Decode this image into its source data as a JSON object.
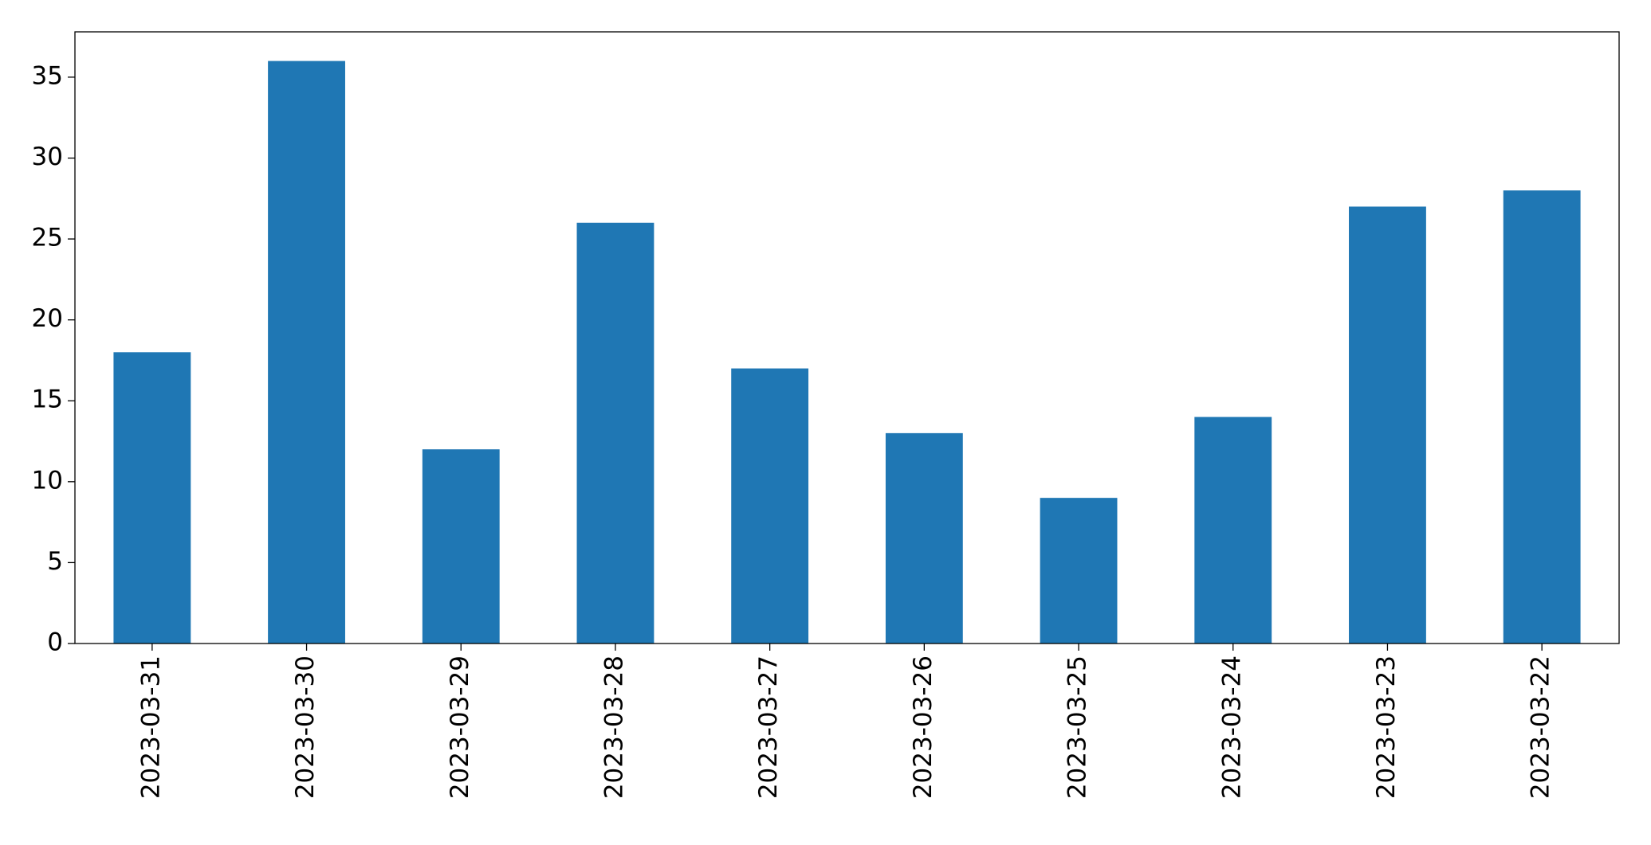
{
  "chart_data": {
    "type": "bar",
    "categories": [
      "2023-03-31",
      "2023-03-30",
      "2023-03-29",
      "2023-03-28",
      "2023-03-27",
      "2023-03-26",
      "2023-03-25",
      "2023-03-24",
      "2023-03-23",
      "2023-03-22"
    ],
    "values": [
      18,
      36,
      12,
      26,
      17,
      13,
      9,
      14,
      27,
      28
    ],
    "color": "#1f77b4",
    "ylim": [
      0,
      37.8
    ],
    "yticks": [
      0,
      5,
      10,
      15,
      20,
      25,
      30,
      35
    ],
    "grid": false
  }
}
